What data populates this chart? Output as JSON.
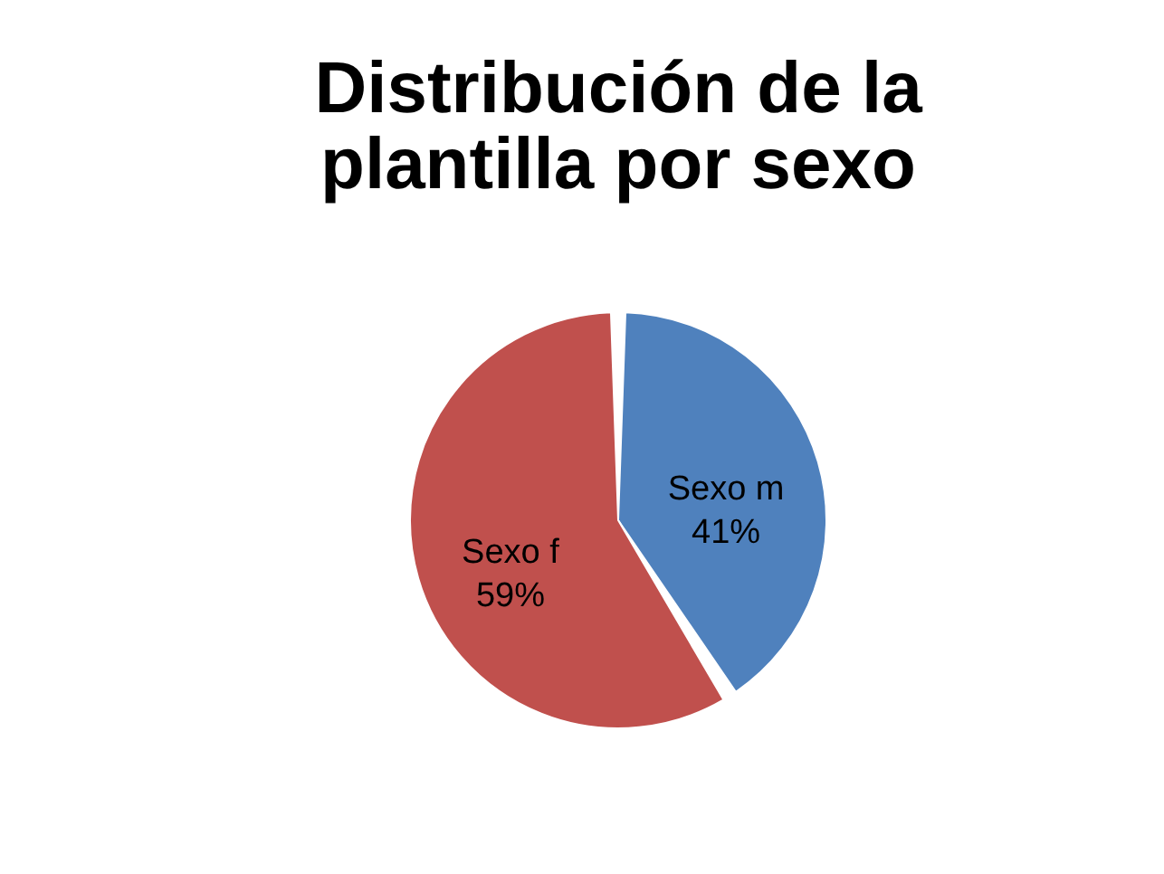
{
  "chart_data": {
    "type": "pie",
    "title": "Distribución de la plantilla por sexo",
    "categories": [
      "Sexo m",
      "Sexo f"
    ],
    "values": [
      41,
      59
    ],
    "colors": [
      "#4f81bd",
      "#c0504d"
    ],
    "value_labels": [
      "41%",
      "59%"
    ],
    "legend": false
  }
}
